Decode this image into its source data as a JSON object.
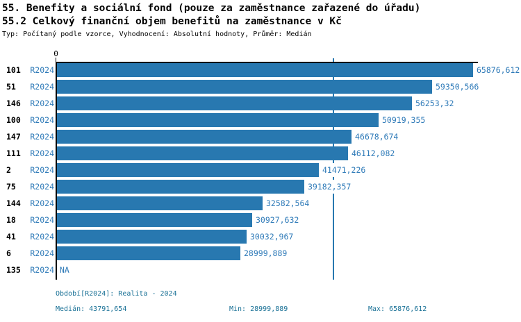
{
  "header": {
    "title": "55. Benefity a sociální fond (pouze za zaměstnance zařazené do úřadu)",
    "subtitle": "55.2 Celkový finanční objem benefitů na zaměstnance v Kč",
    "meta": "Typ: Počítaný podle vzorce, Vyhodnocení: Absolutní hodnoty, Průměr: Medián"
  },
  "chart_data": {
    "type": "bar",
    "orientation": "horizontal",
    "title": "55. Benefity a sociální fond (pouze za zaměstnance zařazené do úřadu)",
    "subtitle": "55.2 Celkový finanční objem benefitů na zaměstnance v Kč",
    "categories": [
      "101",
      "51",
      "146",
      "100",
      "147",
      "111",
      "2",
      "75",
      "144",
      "18",
      "41",
      "6",
      "135"
    ],
    "series": [
      {
        "name": "R2024",
        "values": [
          65876.612,
          59350.566,
          56253.32,
          50919.355,
          46678.674,
          46112.082,
          41471.226,
          39182.357,
          32582.564,
          30927.632,
          30032.967,
          28999.889,
          null
        ],
        "value_labels": [
          "65876,612",
          "59350,566",
          "56253,32",
          "50919,355",
          "46678,674",
          "46112,082",
          "41471,226",
          "39182,357",
          "32582,564",
          "30927,632",
          "30032,967",
          "28999,889",
          "NA"
        ]
      }
    ],
    "na_label": "NA",
    "x_axis": {
      "zero_label": "0",
      "lim": [
        0,
        66650
      ],
      "grid": false
    },
    "median_line": {
      "value": 43791.654,
      "label": "43791,654"
    },
    "legend_position": "none",
    "stats": {
      "median": 43791.654,
      "min": 28999.889,
      "max": 65876.612
    }
  },
  "footer": {
    "period": "Období[R2024]: Realita - 2024",
    "median": "Medián: 43791,654",
    "min": "Min: 28999,889",
    "max": "Max: 65876,612"
  },
  "colors": {
    "bar": "#2878b0",
    "value_text": "#2e7ab8",
    "footer_text": "#1a7196",
    "axis": "#000000"
  }
}
